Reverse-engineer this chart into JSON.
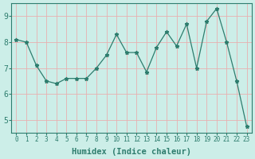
{
  "x": [
    0,
    1,
    2,
    3,
    4,
    5,
    6,
    7,
    8,
    9,
    10,
    11,
    12,
    13,
    14,
    15,
    16,
    17,
    18,
    19,
    20,
    21,
    22,
    23
  ],
  "y": [
    8.1,
    8.0,
    7.1,
    6.5,
    6.4,
    6.6,
    6.6,
    6.6,
    7.0,
    7.5,
    8.3,
    7.6,
    7.6,
    6.85,
    7.8,
    8.4,
    7.85,
    8.7,
    7.0,
    8.8,
    9.3,
    8.0,
    6.5,
    4.75
  ],
  "line_color": "#2e7d6e",
  "marker": "*",
  "marker_size": 3.5,
  "bg_color": "#cceee8",
  "grid_color": "#e8b0b0",
  "xlabel": "Humidex (Indice chaleur)",
  "xlim": [
    -0.5,
    23.5
  ],
  "ylim": [
    4.5,
    9.5
  ],
  "yticks": [
    5,
    6,
    7,
    8,
    9
  ],
  "xticks": [
    0,
    1,
    2,
    3,
    4,
    5,
    6,
    7,
    8,
    9,
    10,
    11,
    12,
    13,
    14,
    15,
    16,
    17,
    18,
    19,
    20,
    21,
    22,
    23
  ],
  "xtick_fontsize": 5.5,
  "ytick_fontsize": 7,
  "xlabel_fontsize": 7.5,
  "spine_color": "#2e7d6e",
  "tick_color": "#2e7d6e",
  "label_color": "#2e7d6e"
}
